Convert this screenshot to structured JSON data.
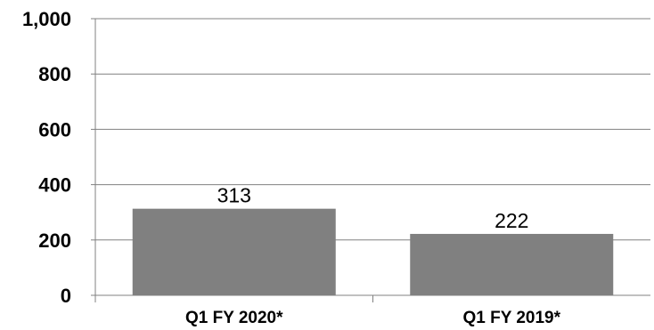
{
  "chart_data": {
    "type": "bar",
    "categories": [
      "Q1 FY 2020*",
      "Q1 FY 2019*"
    ],
    "values": [
      313,
      222
    ],
    "data_labels": [
      "313",
      "222"
    ],
    "title": "",
    "xlabel": "",
    "ylabel": "",
    "ylim": [
      0,
      1000
    ],
    "yticks": [
      0,
      200,
      400,
      600,
      800,
      1000
    ],
    "ytick_labels": [
      "0",
      "200",
      "400",
      "600",
      "800",
      "1,000"
    ],
    "grid": true,
    "legend": "none",
    "bar_color": "#808080",
    "grid_color": "#808080"
  }
}
